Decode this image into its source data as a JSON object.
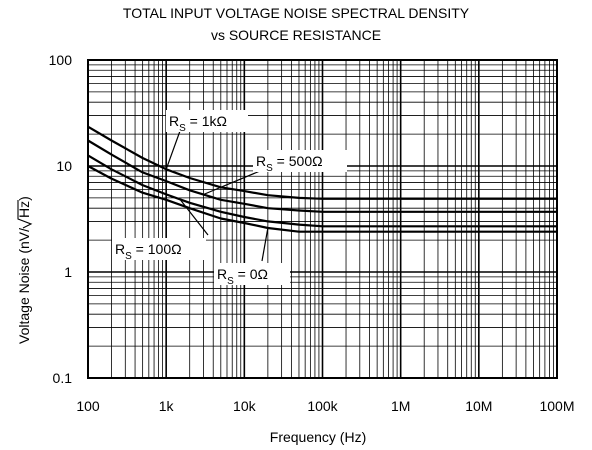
{
  "chart_data": {
    "type": "line",
    "title": "TOTAL INPUT VOLTAGE NOISE SPECTRAL DENSITY",
    "subtitle": "vs SOURCE RESISTANCE",
    "xlabel": "Frequency (Hz)",
    "ylabel_prefix": "Voltage Noise (nV/",
    "ylabel_radicand": "Hz",
    "ylabel_suffix": ")",
    "x_scale": "log",
    "y_scale": "log",
    "xlim": [
      100,
      100000000
    ],
    "ylim": [
      0.1,
      100
    ],
    "grid": true,
    "x_ticks": [
      {
        "value": 100,
        "label": "100"
      },
      {
        "value": 1000,
        "label": "1k"
      },
      {
        "value": 10000,
        "label": "10k"
      },
      {
        "value": 100000,
        "label": "100k"
      },
      {
        "value": 1000000,
        "label": "1M"
      },
      {
        "value": 10000000,
        "label": "10M"
      },
      {
        "value": 100000000,
        "label": "100M"
      }
    ],
    "y_ticks": [
      {
        "value": 0.1,
        "label": "0.1"
      },
      {
        "value": 1,
        "label": "1"
      },
      {
        "value": 10,
        "label": "10"
      },
      {
        "value": 100,
        "label": "100"
      }
    ],
    "x": [
      100,
      200,
      500,
      1000,
      2000,
      5000,
      10000,
      20000,
      50000,
      100000,
      1000000,
      10000000,
      100000000
    ],
    "series": [
      {
        "name": "RS = 1kΩ",
        "values": [
          23.5,
          17.4,
          11.9,
          9.3,
          7.7,
          6.3,
          5.8,
          5.3,
          5.0,
          4.9,
          4.9,
          4.9,
          4.9
        ]
      },
      {
        "name": "RS = 500Ω",
        "values": [
          17.4,
          12.8,
          8.7,
          7.2,
          5.9,
          4.8,
          4.4,
          4.0,
          3.8,
          3.7,
          3.7,
          3.7,
          3.7
        ]
      },
      {
        "name": "RS = 100Ω",
        "values": [
          12.6,
          9.3,
          6.6,
          5.4,
          4.5,
          3.7,
          3.3,
          3.0,
          2.8,
          2.7,
          2.7,
          2.7,
          2.7
        ]
      },
      {
        "name": "RS = 0Ω",
        "values": [
          10.0,
          7.6,
          5.6,
          4.8,
          4.0,
          3.2,
          2.9,
          2.6,
          2.4,
          2.4,
          2.4,
          2.4,
          2.4
        ]
      }
    ],
    "annotations": [
      {
        "prefix": "R",
        "sub": "S",
        "suffix": " = 1kΩ",
        "series": 0
      },
      {
        "prefix": "R",
        "sub": "S",
        "suffix": " = 500Ω",
        "series": 1
      },
      {
        "prefix": "R",
        "sub": "S",
        "suffix": " = 100Ω",
        "series": 2
      },
      {
        "prefix": "R",
        "sub": "S",
        "suffix": " = 0Ω",
        "series": 3
      }
    ]
  }
}
